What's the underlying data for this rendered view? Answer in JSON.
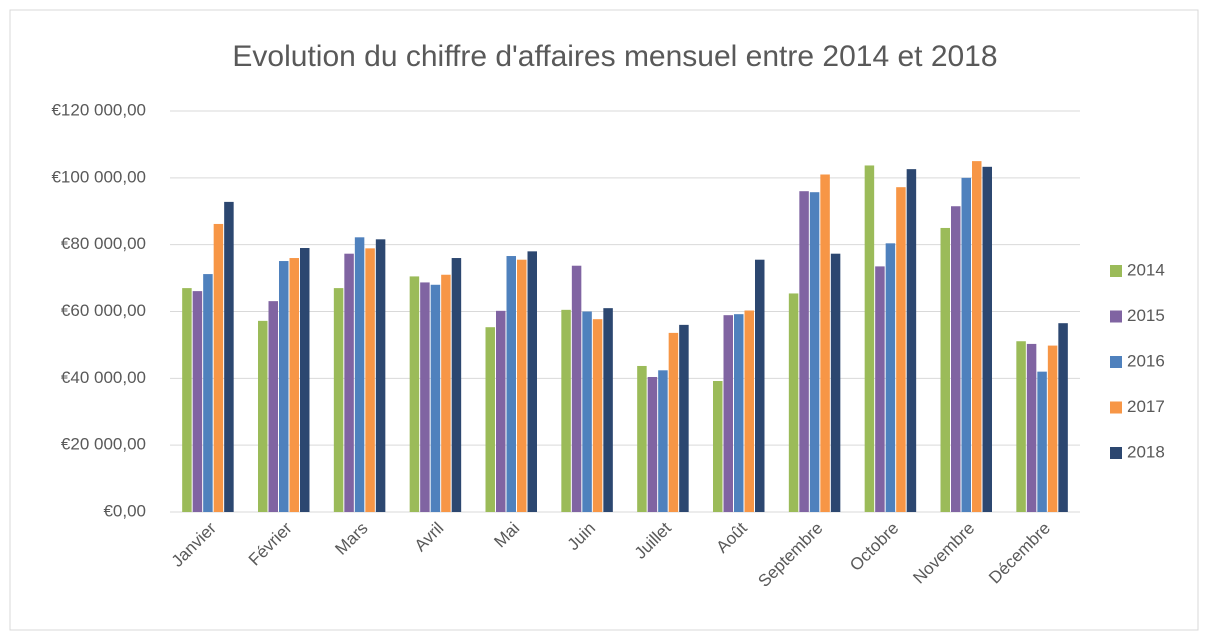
{
  "chart_data": {
    "type": "bar",
    "title": "Evolution du chiffre d'affaires mensuel entre 2014 et 2018",
    "categories": [
      "Janvier",
      "Février",
      "Mars",
      "Avril",
      "Mai",
      "Juin",
      "Juillet",
      "Août",
      "Septembre",
      "Octobre",
      "Novembre",
      "Décembre"
    ],
    "series": [
      {
        "name": "2014",
        "color": "#9bbb59",
        "values": [
          67000,
          57200,
          67000,
          70500,
          55300,
          60500,
          43700,
          39200,
          65400,
          103700,
          85000,
          51100
        ]
      },
      {
        "name": "2015",
        "color": "#8064a2",
        "values": [
          66100,
          63100,
          77300,
          68700,
          60200,
          73700,
          40400,
          58900,
          96000,
          73500,
          91500,
          50300
        ]
      },
      {
        "name": "2016",
        "color": "#4f81bd",
        "values": [
          71200,
          75100,
          82200,
          68000,
          76600,
          60000,
          42400,
          59200,
          95700,
          80400,
          100000,
          42000
        ]
      },
      {
        "name": "2017",
        "color": "#f79646",
        "values": [
          86200,
          76000,
          78900,
          71000,
          75500,
          57700,
          53600,
          60300,
          101000,
          97200,
          105000,
          49800
        ]
      },
      {
        "name": "2018",
        "color": "#2c4770",
        "values": [
          92800,
          79000,
          81600,
          76000,
          78000,
          61000,
          56000,
          75500,
          77300,
          102600,
          103300,
          56500
        ]
      }
    ],
    "ylim": [
      0,
      120000
    ],
    "yticks": [
      {
        "value": 0,
        "label": "€0,00"
      },
      {
        "value": 20000,
        "label": "€20 000,00"
      },
      {
        "value": 40000,
        "label": "€40 000,00"
      },
      {
        "value": 60000,
        "label": "€60 000,00"
      },
      {
        "value": 80000,
        "label": "€80 000,00"
      },
      {
        "value": 100000,
        "label": "€100 000,00"
      },
      {
        "value": 120000,
        "label": "€120 000,00"
      }
    ],
    "grid": true,
    "legend": "right"
  }
}
